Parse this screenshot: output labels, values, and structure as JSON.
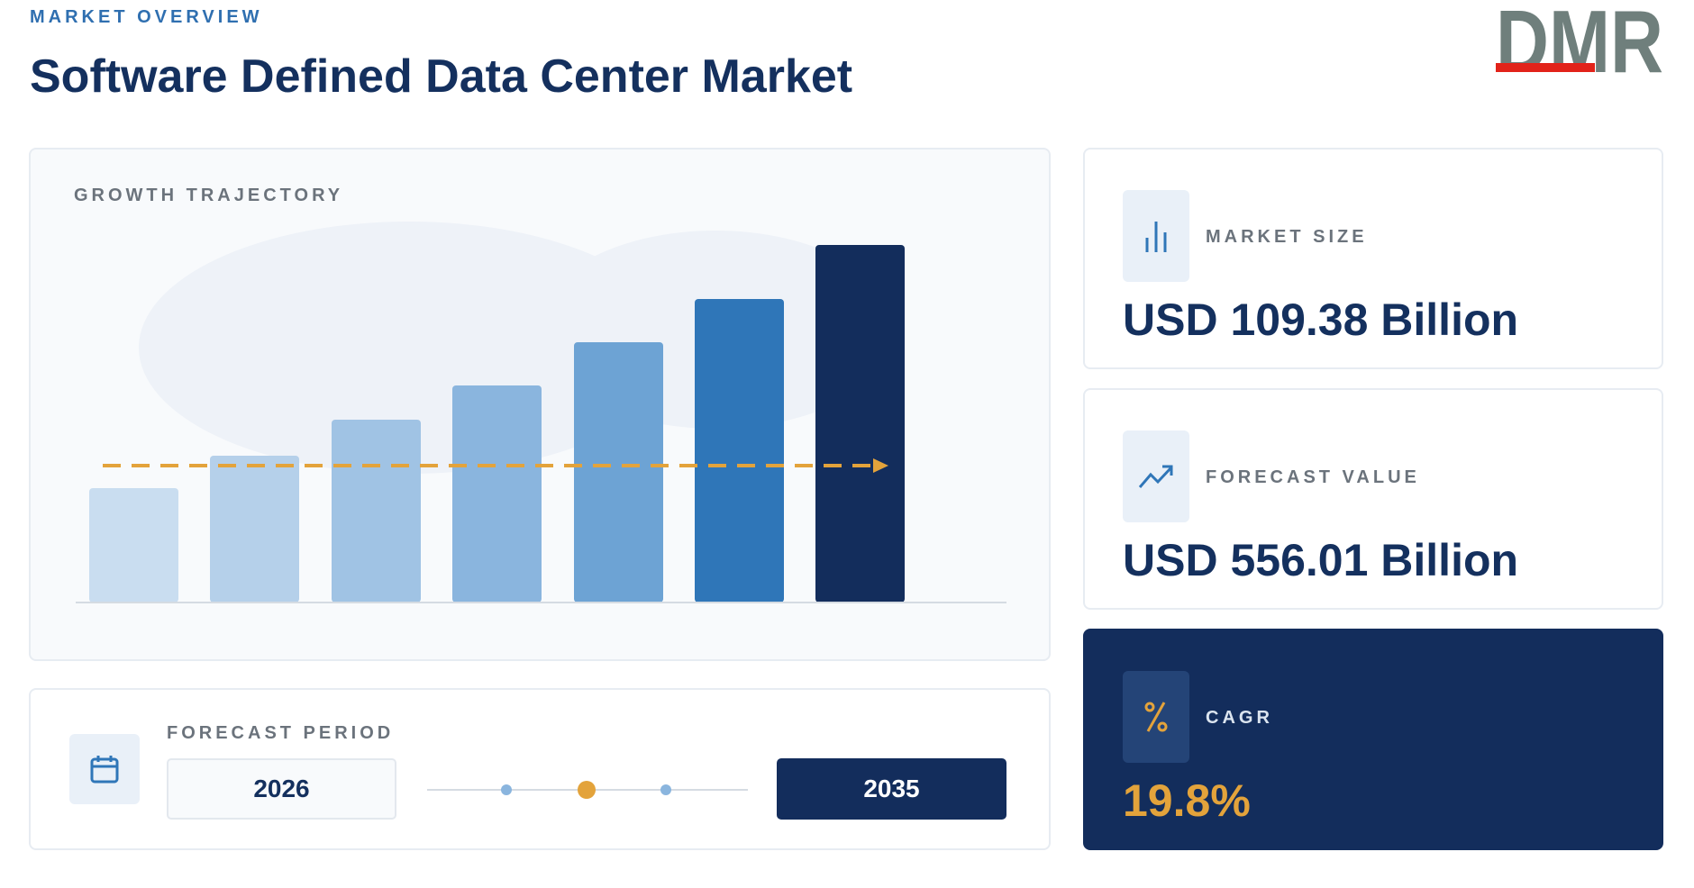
{
  "header": {
    "section": "MARKET OVERVIEW",
    "title": "Software Defined Data Center Market",
    "logo": "DMR"
  },
  "growth": {
    "label": "GROWTH TRAJECTORY"
  },
  "forecast_period": {
    "label": "FORECAST PERIOD",
    "start": "2026",
    "end": "2035"
  },
  "metrics": [
    {
      "label": "MARKET SIZE",
      "value": "USD 109.38 Billion"
    },
    {
      "label": "FORECAST VALUE",
      "value": "USD 556.01 Billion"
    },
    {
      "label": "CAGR",
      "value": "19.8%"
    }
  ]
}
